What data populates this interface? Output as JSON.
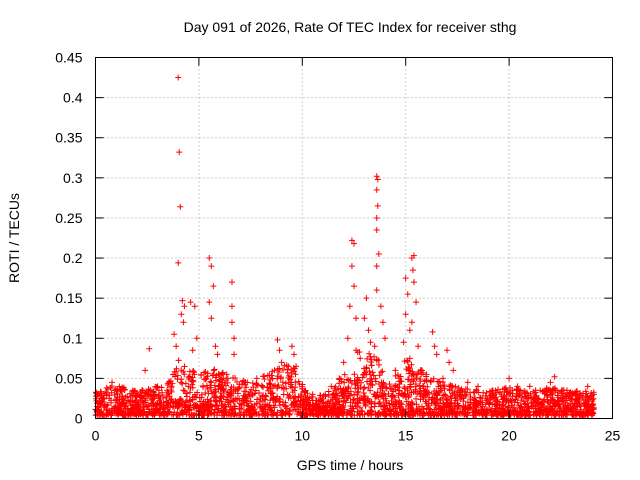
{
  "chart_data": {
    "type": "scatter",
    "title": "Day 091 of 2026, Rate Of TEC Index for receiver sthg",
    "xlabel": "GPS time / hours",
    "ylabel": "ROTI / TECUs",
    "xlim": [
      0,
      25
    ],
    "ylim": [
      0,
      0.45
    ],
    "x_ticks": [
      "0",
      "5",
      "10",
      "15",
      "20",
      "25"
    ],
    "y_ticks": [
      "0",
      "0.05",
      "0.1",
      "0.15",
      "0.2",
      "0.25",
      "0.3",
      "0.35",
      "0.4",
      "0.45"
    ],
    "grid": true,
    "marker": "plus",
    "color": "#ff0000",
    "series": [
      {
        "name": "ROTI",
        "peaks": [
          [
            4.0,
            0.425
          ],
          [
            4.05,
            0.332
          ],
          [
            4.1,
            0.264
          ],
          [
            4.0,
            0.194
          ],
          [
            4.2,
            0.147
          ],
          [
            4.3,
            0.14
          ],
          [
            3.8,
            0.105
          ],
          [
            3.9,
            0.09
          ],
          [
            4.15,
            0.13
          ],
          [
            4.25,
            0.12
          ],
          [
            4.6,
            0.145
          ],
          [
            4.8,
            0.14
          ],
          [
            4.9,
            0.1
          ],
          [
            4.7,
            0.085
          ],
          [
            5.5,
            0.2
          ],
          [
            5.6,
            0.19
          ],
          [
            5.7,
            0.165
          ],
          [
            5.5,
            0.145
          ],
          [
            5.6,
            0.125
          ],
          [
            5.8,
            0.09
          ],
          [
            5.9,
            0.08
          ],
          [
            6.6,
            0.17
          ],
          [
            6.6,
            0.14
          ],
          [
            6.6,
            0.12
          ],
          [
            6.7,
            0.1
          ],
          [
            6.7,
            0.08
          ],
          [
            2.6,
            0.087
          ],
          [
            2.4,
            0.06
          ],
          [
            8.8,
            0.098
          ],
          [
            8.9,
            0.085
          ],
          [
            9.0,
            0.07
          ],
          [
            9.5,
            0.09
          ],
          [
            9.6,
            0.08
          ],
          [
            9.7,
            0.065
          ],
          [
            12.4,
            0.222
          ],
          [
            12.5,
            0.218
          ],
          [
            12.4,
            0.19
          ],
          [
            12.5,
            0.165
          ],
          [
            12.3,
            0.14
          ],
          [
            12.6,
            0.125
          ],
          [
            12.2,
            0.1
          ],
          [
            12.6,
            0.085
          ],
          [
            13.1,
            0.15
          ],
          [
            13.0,
            0.125
          ],
          [
            13.2,
            0.11
          ],
          [
            13.3,
            0.095
          ],
          [
            13.6,
            0.302
          ],
          [
            13.65,
            0.298
          ],
          [
            13.6,
            0.285
          ],
          [
            13.65,
            0.265
          ],
          [
            13.6,
            0.25
          ],
          [
            13.6,
            0.235
          ],
          [
            13.7,
            0.205
          ],
          [
            13.6,
            0.19
          ],
          [
            13.6,
            0.16
          ],
          [
            13.8,
            0.14
          ],
          [
            13.9,
            0.12
          ],
          [
            14.0,
            0.1
          ],
          [
            13.5,
            0.09
          ],
          [
            15.0,
            0.175
          ],
          [
            15.1,
            0.155
          ],
          [
            15.0,
            0.13
          ],
          [
            15.2,
            0.11
          ],
          [
            14.9,
            0.095
          ],
          [
            15.3,
            0.2
          ],
          [
            15.35,
            0.185
          ],
          [
            15.4,
            0.203
          ],
          [
            15.4,
            0.17
          ],
          [
            15.5,
            0.145
          ],
          [
            15.3,
            0.12
          ],
          [
            15.6,
            0.09
          ],
          [
            15.2,
            0.075
          ],
          [
            16.3,
            0.108
          ],
          [
            16.4,
            0.09
          ],
          [
            16.5,
            0.08
          ],
          [
            17.0,
            0.085
          ],
          [
            17.1,
            0.07
          ],
          [
            17.3,
            0.06
          ],
          [
            18.0,
            0.045
          ],
          [
            20.0,
            0.05
          ],
          [
            20.4,
            0.04
          ],
          [
            22.0,
            0.045
          ],
          [
            22.2,
            0.052
          ],
          [
            23.8,
            0.04
          ],
          [
            0.8,
            0.045
          ],
          [
            1.8,
            0.035
          ],
          [
            3.0,
            0.04
          ],
          [
            7.2,
            0.045
          ],
          [
            7.8,
            0.05
          ],
          [
            10.5,
            0.03
          ],
          [
            11.4,
            0.04
          ],
          [
            11.8,
            0.05
          ],
          [
            12.0,
            0.07
          ],
          [
            12.8,
            0.075
          ],
          [
            14.5,
            0.06
          ],
          [
            16.0,
            0.055
          ],
          [
            16.8,
            0.05
          ],
          [
            18.5,
            0.04
          ],
          [
            19.2,
            0.035
          ],
          [
            21.0,
            0.04
          ],
          [
            22.8,
            0.035
          ],
          [
            23.2,
            0.03
          ]
        ]
      }
    ]
  }
}
